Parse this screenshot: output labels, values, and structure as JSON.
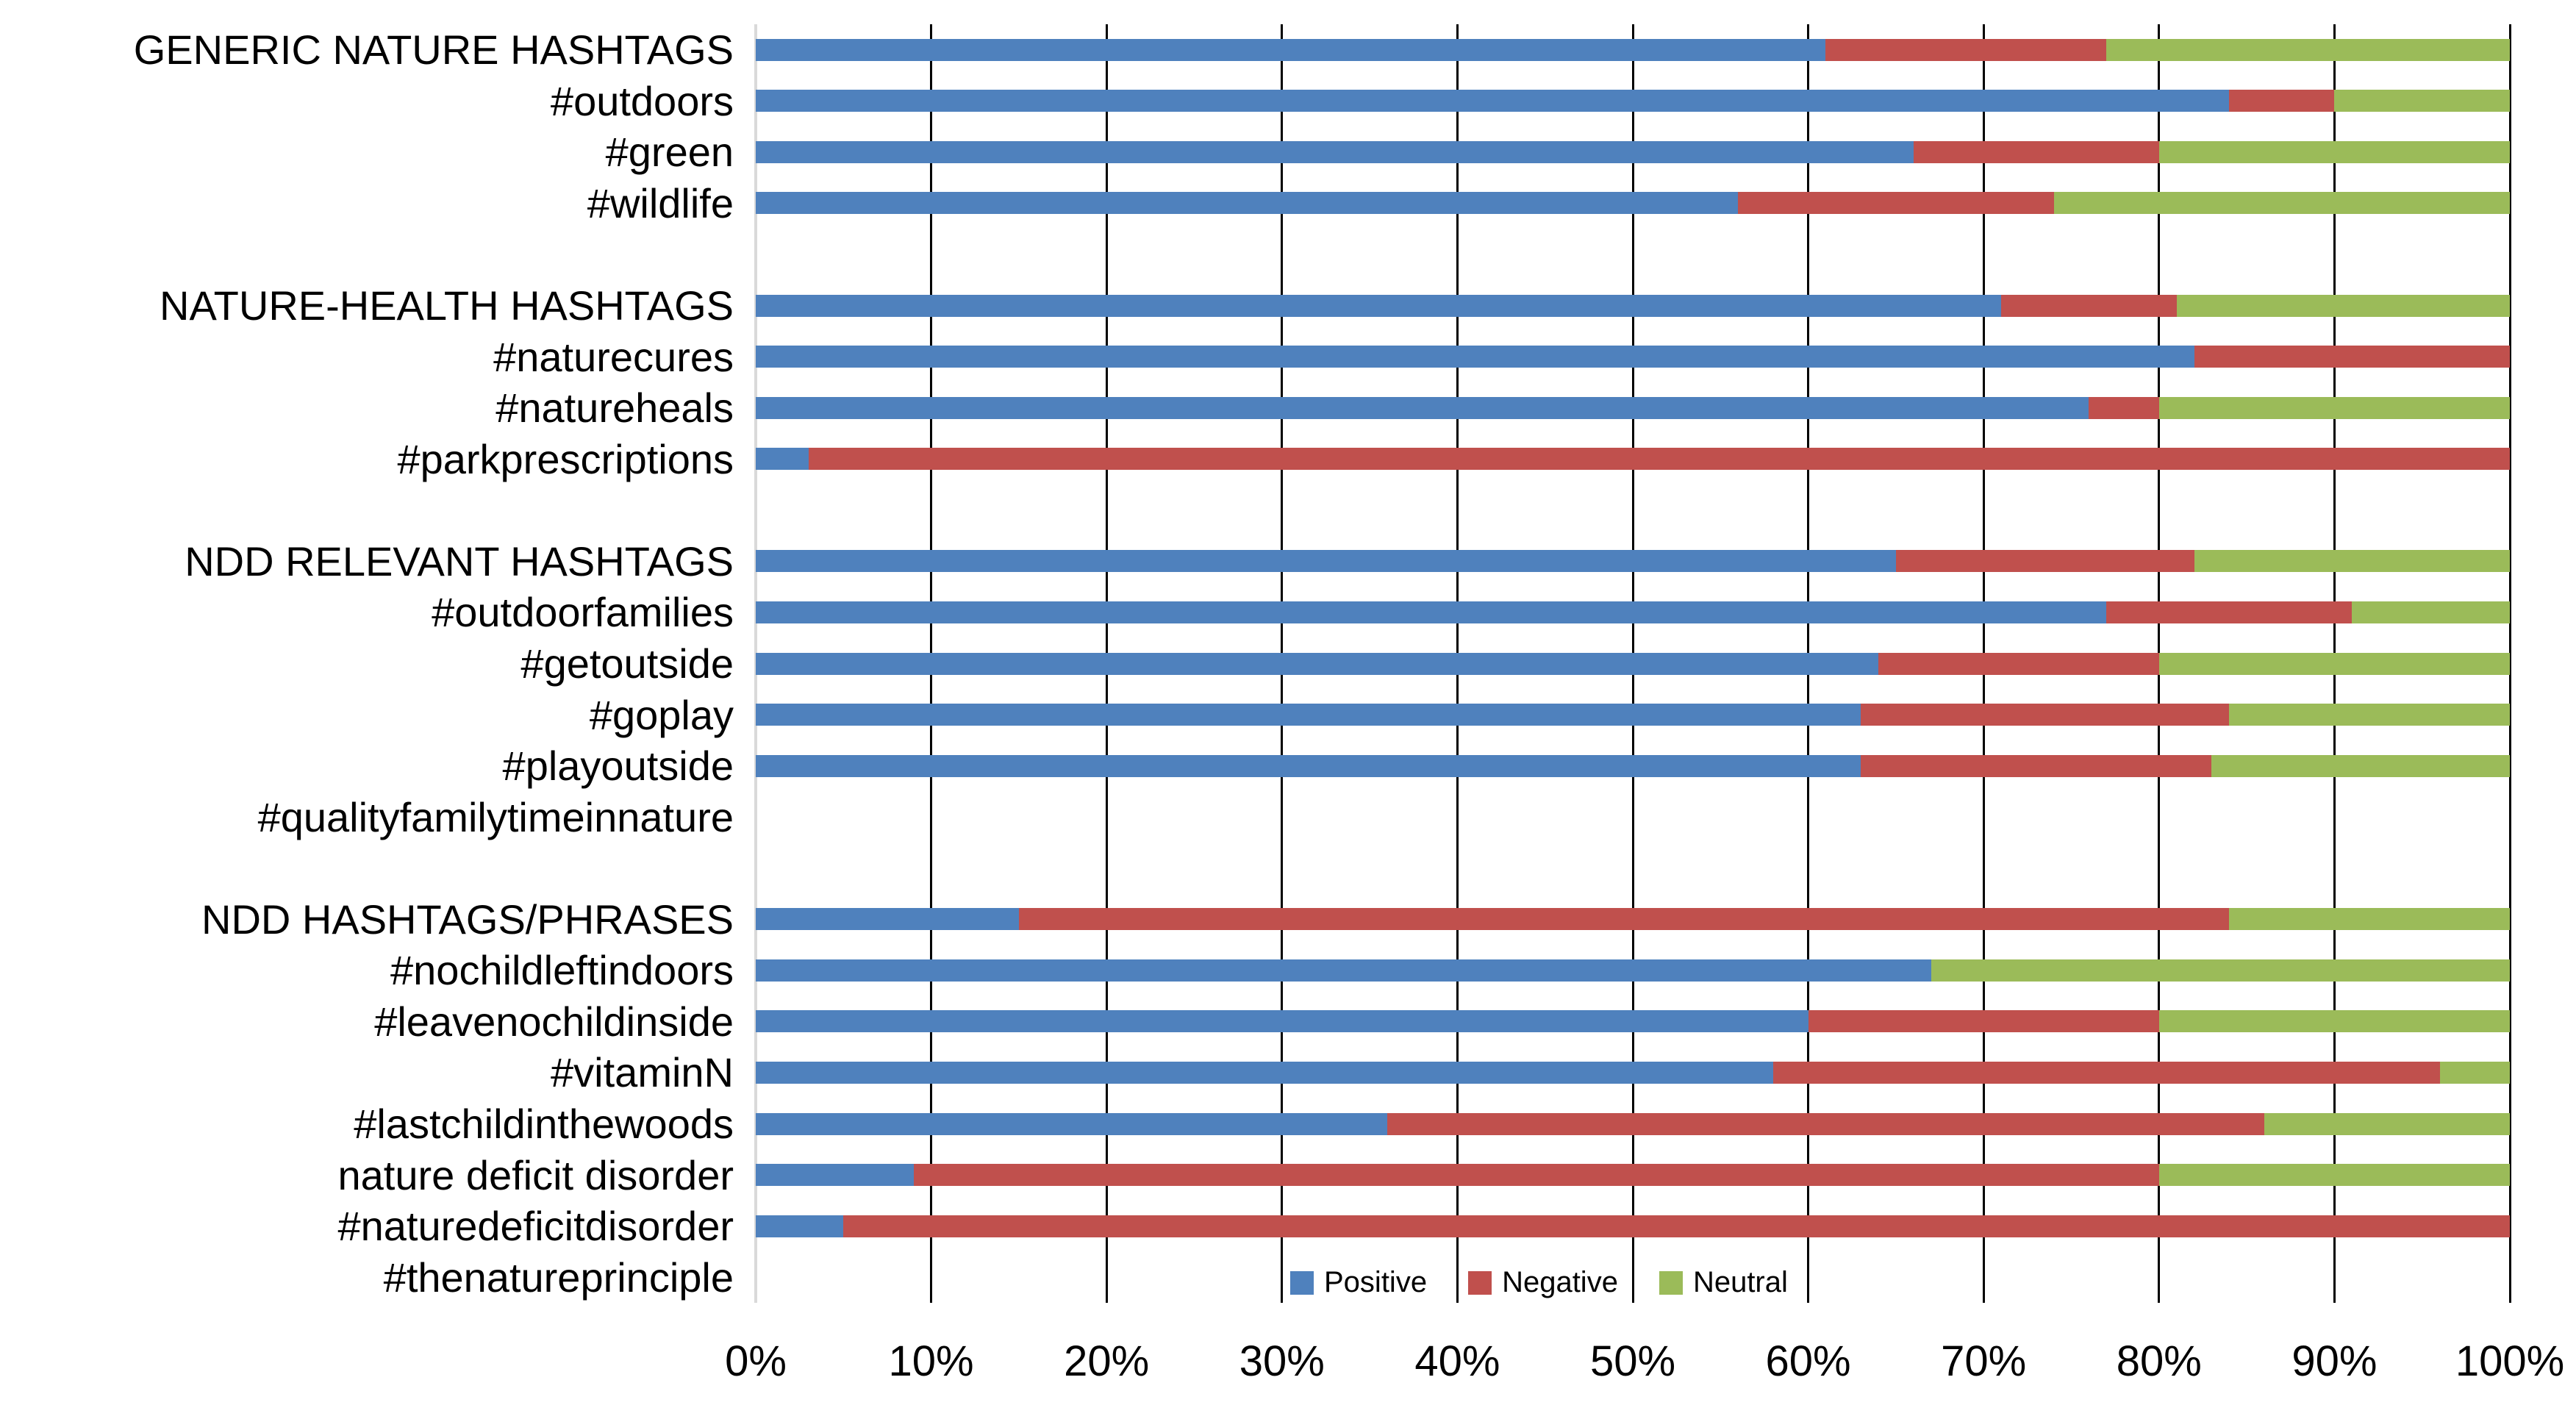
{
  "chart_data": {
    "type": "bar",
    "orientation": "horizontal",
    "stacked": true,
    "unit": "percent",
    "title": "",
    "xlabel": "",
    "ylabel": "",
    "xlim": [
      0,
      100
    ],
    "grid": true,
    "x_ticks": [
      "0%",
      "10%",
      "20%",
      "30%",
      "40%",
      "50%",
      "60%",
      "70%",
      "80%",
      "90%",
      "100%"
    ],
    "series_names": [
      "Positive",
      "Negative",
      "Neutral"
    ],
    "colors": {
      "positive": "#4F81BD",
      "negative": "#C0504D",
      "neutral": "#9BBB59",
      "gridline": "#000000",
      "zero_axis": "#D9D9D9",
      "text": "#000000",
      "background": "#FFFFFF"
    },
    "legend": {
      "position": "bottom",
      "entries": [
        {
          "label": "Positive",
          "color": "#4F81BD"
        },
        {
          "label": "Negative",
          "color": "#C0504D"
        },
        {
          "label": "Neutral",
          "color": "#9BBB59"
        }
      ]
    },
    "groups": [
      {
        "rows": [
          {
            "label": "GENERIC NATURE HASHTAGS",
            "values": [
              61,
              16,
              23
            ]
          },
          {
            "label": "#outdoors",
            "values": [
              84,
              6,
              10
            ]
          },
          {
            "label": "#green",
            "values": [
              66,
              14,
              20
            ]
          },
          {
            "label": "#wildlife",
            "values": [
              56,
              18,
              26
            ]
          }
        ]
      },
      {
        "rows": [
          {
            "label": "NATURE-HEALTH HASHTAGS",
            "values": [
              71,
              10,
              19
            ]
          },
          {
            "label": "#naturecures",
            "values": [
              82,
              18,
              0
            ]
          },
          {
            "label": "#natureheals",
            "values": [
              76,
              4,
              20
            ]
          },
          {
            "label": "#parkprescriptions",
            "values": [
              3,
              97,
              0
            ]
          }
        ]
      },
      {
        "rows": [
          {
            "label": "NDD RELEVANT HASHTAGS",
            "values": [
              65,
              17,
              18
            ]
          },
          {
            "label": "#outdoorfamilies",
            "values": [
              77,
              14,
              9
            ]
          },
          {
            "label": "#getoutside",
            "values": [
              64,
              16,
              20
            ]
          },
          {
            "label": "#goplay",
            "values": [
              63,
              21,
              16
            ]
          },
          {
            "label": "#playoutside",
            "values": [
              63,
              20,
              17
            ]
          },
          {
            "label": "#qualityfamilytimeinnature",
            "values": [
              0,
              0,
              0
            ]
          }
        ]
      },
      {
        "rows": [
          {
            "label": "NDD HASHTAGS/PHRASES",
            "values": [
              15,
              69,
              16
            ]
          },
          {
            "label": "#nochildleftindoors",
            "values": [
              67,
              0,
              33
            ]
          },
          {
            "label": "#leavenochildinside",
            "values": [
              60,
              20,
              20
            ]
          },
          {
            "label": "#vitaminN",
            "values": [
              58,
              38,
              4
            ]
          },
          {
            "label": "#lastchildinthewoods",
            "values": [
              36,
              50,
              14
            ]
          },
          {
            "label": "nature deficit disorder",
            "values": [
              9,
              71,
              20
            ]
          },
          {
            "label": "#naturedeficitdisorder",
            "values": [
              5,
              95,
              0
            ]
          },
          {
            "label": "#thenatureprinciple",
            "values": [
              0,
              0,
              0
            ]
          }
        ]
      }
    ]
  }
}
